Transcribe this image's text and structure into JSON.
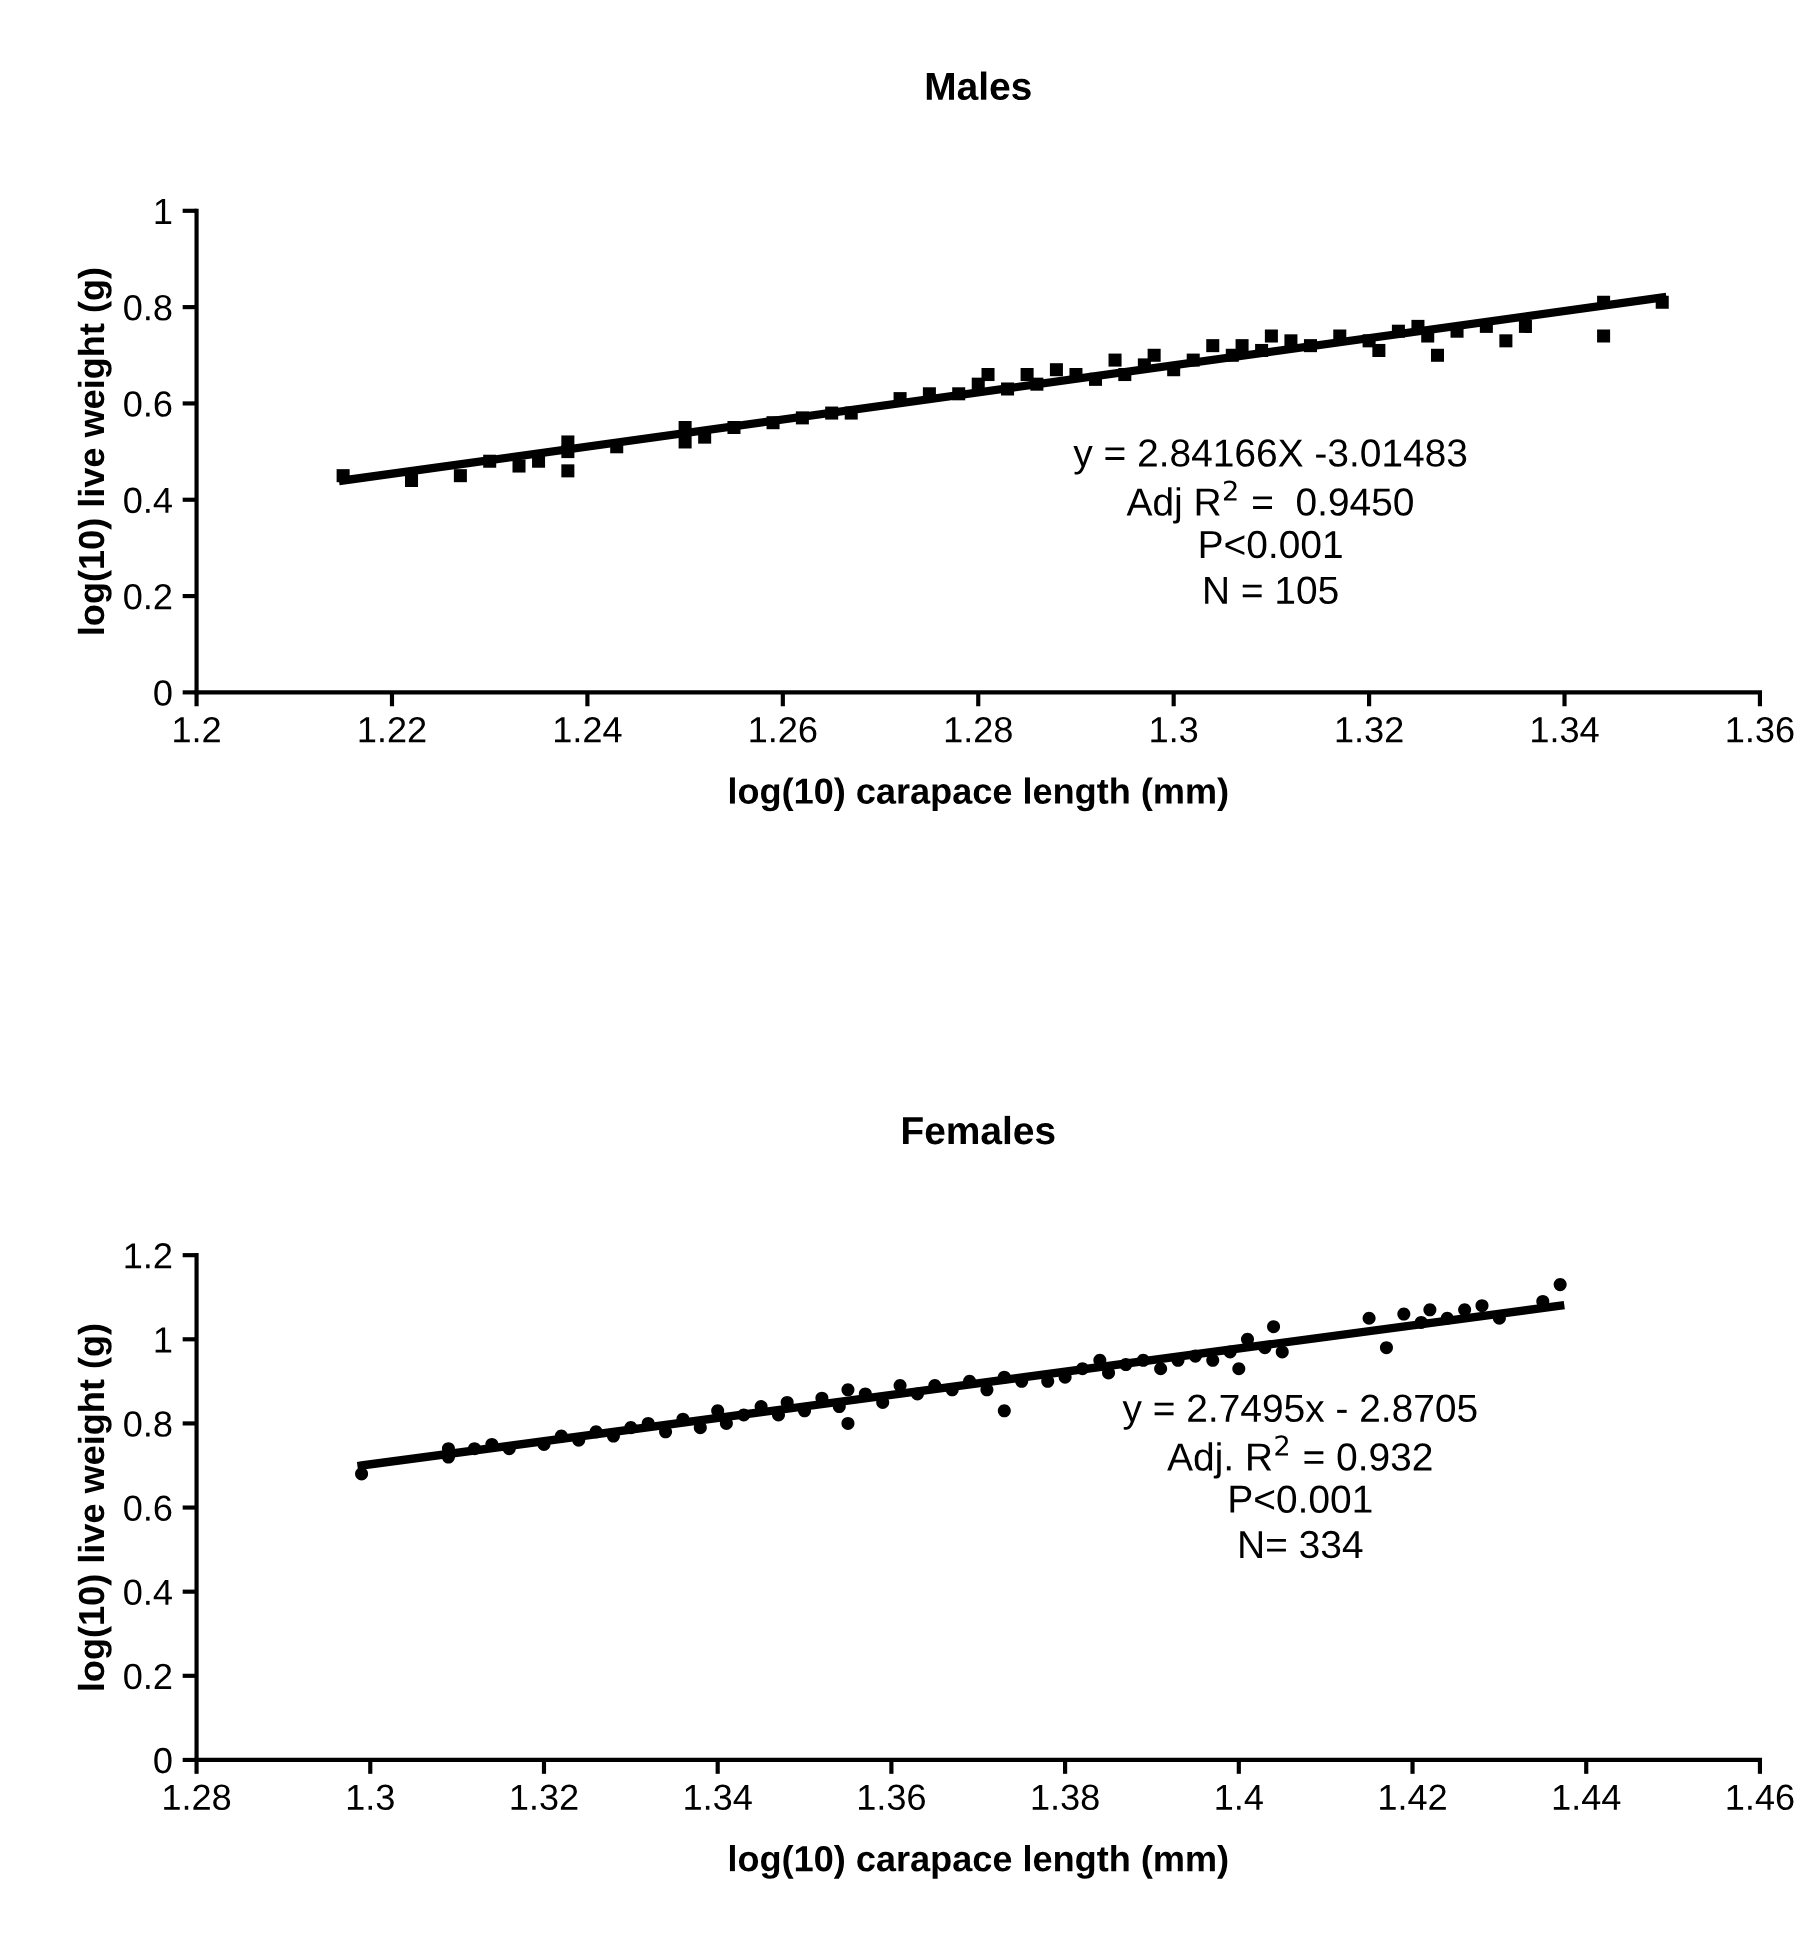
{
  "chart_data": [
    {
      "type": "scatter",
      "title": "Males",
      "xlabel": "log(10) carapace length (mm)",
      "ylabel": "log(10) live weight (g)",
      "xlim": [
        1.2,
        1.36
      ],
      "xticks": [
        1.2,
        1.22,
        1.24,
        1.26,
        1.28,
        1.3,
        1.32,
        1.34,
        1.36
      ],
      "ylim": [
        0,
        1
      ],
      "yticks": [
        0,
        0.2,
        0.4,
        0.6,
        0.8,
        1
      ],
      "grid": false,
      "legend": false,
      "annotations": [
        "y = 2.84166X -3.01483",
        "Adj R$^{2}$ =  0.9450",
        "P<0.001",
        "N = 105"
      ],
      "series": [
        {
          "color": "#000000",
          "marker": "square",
          "x": [
            1.215,
            1.222,
            1.227,
            1.23,
            1.233,
            1.235,
            1.238,
            1.238,
            1.238,
            1.243,
            1.25,
            1.25,
            1.252,
            1.255,
            1.259,
            1.262,
            1.265,
            1.267,
            1.272,
            1.275,
            1.278,
            1.28,
            1.281,
            1.283,
            1.285,
            1.286,
            1.288,
            1.29,
            1.292,
            1.294,
            1.295,
            1.297,
            1.298,
            1.3,
            1.302,
            1.304,
            1.306,
            1.307,
            1.309,
            1.31,
            1.312,
            1.314,
            1.317,
            1.32,
            1.321,
            1.323,
            1.325,
            1.326,
            1.327,
            1.329,
            1.332,
            1.334,
            1.336,
            1.344,
            1.344,
            1.35
          ],
          "values": [
            0.45,
            0.44,
            0.45,
            0.48,
            0.47,
            0.48,
            0.46,
            0.5,
            0.52,
            0.51,
            0.52,
            0.55,
            0.53,
            0.55,
            0.56,
            0.57,
            0.58,
            0.58,
            0.61,
            0.62,
            0.62,
            0.64,
            0.66,
            0.63,
            0.66,
            0.64,
            0.67,
            0.66,
            0.65,
            0.69,
            0.66,
            0.68,
            0.7,
            0.67,
            0.69,
            0.72,
            0.7,
            0.72,
            0.71,
            0.74,
            0.73,
            0.72,
            0.74,
            0.73,
            0.71,
            0.75,
            0.76,
            0.74,
            0.7,
            0.75,
            0.76,
            0.73,
            0.76,
            0.81,
            0.74,
            0.81
          ]
        },
        {
          "type": "line",
          "color": "#000000",
          "marker": "none",
          "line_style": "solid",
          "x": [
            1.215,
            1.35
          ],
          "values": [
            0.44,
            0.82
          ]
        }
      ]
    },
    {
      "type": "scatter",
      "title": "Females",
      "xlabel": "log(10) carapace length (mm)",
      "ylabel": "log(10) live weight (g)",
      "xlim": [
        1.28,
        1.46
      ],
      "xticks": [
        1.28,
        1.3,
        1.32,
        1.34,
        1.36,
        1.38,
        1.4,
        1.42,
        1.44,
        1.46
      ],
      "ylim": [
        0,
        1.2
      ],
      "yticks": [
        0,
        0.2,
        0.4,
        0.6,
        0.8,
        1,
        1.2
      ],
      "grid": false,
      "legend": false,
      "annotations": [
        "y = 2.7495x - 2.8705",
        "Adj. R$^{2}$ = 0.932",
        "P<0.001",
        "N= 334"
      ],
      "series": [
        {
          "color": "#000000",
          "marker": "circle",
          "x": [
            1.299,
            1.309,
            1.309,
            1.312,
            1.314,
            1.316,
            1.32,
            1.322,
            1.324,
            1.326,
            1.328,
            1.33,
            1.332,
            1.334,
            1.336,
            1.338,
            1.34,
            1.341,
            1.343,
            1.345,
            1.347,
            1.348,
            1.35,
            1.352,
            1.354,
            1.355,
            1.355,
            1.357,
            1.359,
            1.361,
            1.363,
            1.365,
            1.367,
            1.369,
            1.371,
            1.373,
            1.373,
            1.375,
            1.378,
            1.38,
            1.382,
            1.384,
            1.385,
            1.387,
            1.389,
            1.391,
            1.393,
            1.395,
            1.397,
            1.399,
            1.4,
            1.401,
            1.403,
            1.404,
            1.405,
            1.415,
            1.417,
            1.419,
            1.421,
            1.422,
            1.424,
            1.426,
            1.428,
            1.43,
            1.435,
            1.437
          ],
          "values": [
            0.68,
            0.72,
            0.74,
            0.74,
            0.75,
            0.74,
            0.75,
            0.77,
            0.76,
            0.78,
            0.77,
            0.79,
            0.8,
            0.78,
            0.81,
            0.79,
            0.83,
            0.8,
            0.82,
            0.84,
            0.82,
            0.85,
            0.83,
            0.86,
            0.84,
            0.88,
            0.8,
            0.87,
            0.85,
            0.89,
            0.87,
            0.89,
            0.88,
            0.9,
            0.88,
            0.91,
            0.83,
            0.9,
            0.9,
            0.91,
            0.93,
            0.95,
            0.92,
            0.94,
            0.95,
            0.93,
            0.95,
            0.96,
            0.95,
            0.97,
            0.93,
            1.0,
            0.98,
            1.03,
            0.97,
            1.05,
            0.98,
            1.06,
            1.04,
            1.07,
            1.05,
            1.07,
            1.08,
            1.05,
            1.09,
            1.13
          ]
        },
        {
          "type": "line",
          "color": "#000000",
          "marker": "none",
          "line_style": "solid",
          "x": [
            1.299,
            1.437
          ],
          "values": [
            0.7,
            1.08
          ]
        }
      ]
    }
  ]
}
